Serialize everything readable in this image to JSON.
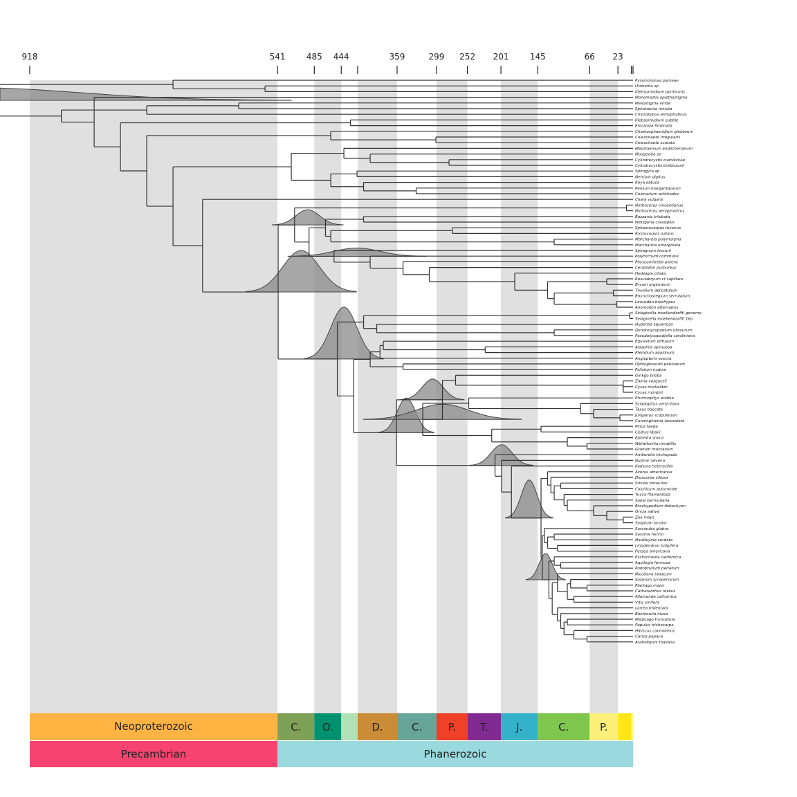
{
  "chart_data": {
    "type": "tree",
    "x_axis": {
      "unit": "Ma",
      "range": [
        918,
        0
      ],
      "ticks": [
        918,
        541,
        485,
        444,
        419,
        359,
        299,
        252,
        201,
        145,
        66,
        23,
        2.6,
        0
      ],
      "tick_labels": [
        "918",
        "541",
        "485",
        "444",
        "",
        "359",
        "299",
        "252",
        "201",
        "145",
        "66",
        "23",
        "",
        ""
      ]
    },
    "shaded_bands": [
      [
        918,
        541
      ],
      [
        485,
        444
      ],
      [
        419,
        359
      ],
      [
        299,
        252
      ],
      [
        201,
        145
      ],
      [
        66,
        23
      ]
    ],
    "periods": [
      {
        "label": "C.",
        "start": 541,
        "end": 485,
        "color": "#7FA057"
      },
      {
        "label": "O.",
        "start": 485,
        "end": 444,
        "color": "#009270"
      },
      {
        "label": "",
        "start": 444,
        "end": 419,
        "color": "#B3E1B6"
      },
      {
        "label": "D.",
        "start": 419,
        "end": 359,
        "color": "#CB8C37"
      },
      {
        "label": "C.",
        "start": 359,
        "end": 299,
        "color": "#67A599"
      },
      {
        "label": "P.",
        "start": 299,
        "end": 252,
        "color": "#F04028"
      },
      {
        "label": "T.",
        "start": 252,
        "end": 201,
        "color": "#812B92"
      },
      {
        "label": "J.",
        "start": 201,
        "end": 145,
        "color": "#34B2C9"
      },
      {
        "label": "C.",
        "start": 145,
        "end": 66,
        "color": "#7FC64E"
      },
      {
        "label": "P.",
        "start": 66,
        "end": 23,
        "color": "#FDF07A"
      },
      {
        "label": "",
        "start": 23,
        "end": 2.6,
        "color": "#FFE619"
      },
      {
        "label": "",
        "start": 2.6,
        "end": 0,
        "color": "#F9F97F"
      }
    ],
    "eras": [
      {
        "label": "Neoproterozoic",
        "start": 918,
        "end": 541,
        "color": "#FEB342"
      }
    ],
    "eons": [
      {
        "label": "Precambrian",
        "start": 918,
        "end": 541,
        "color": "#F74370"
      },
      {
        "label": "Phanerozoic",
        "start": 541,
        "end": 0,
        "color": "#9AD9DD"
      }
    ],
    "taxa": [
      "Pyramimonas parkeae",
      "Uronema sp",
      "Klebsormidium pyriformis",
      "Monomastix opisthostigma",
      "Mesostigma viride",
      "Spirotaenia minuta",
      "Chlorokybus atmophyticus",
      "Klebsormidium subtile",
      "Entransia fimbriata",
      "Chaetosphaeridium globosum",
      "Coleochaete irregularis",
      "Coleochaete scutata",
      "Mesotaenium endlicherianum",
      "Mougeotia sp",
      "Cylindrocystis cushleckae",
      "Cylindrocystis brebissonii",
      "Spirogyra sp",
      "Netrium digitus",
      "Roya obtusa",
      "Penium margaritaceum",
      "Cosmarium ochthodes",
      "Chara vulgaris",
      "Nothoceros vincentianus",
      "Nothoceros aenigmaticus",
      "Bazzania trilobata",
      "Metzgeria crassipilis",
      "Sphaerocarpos texanus",
      "Ricciocarpos natans",
      "Marchantia polymorpha",
      "Marchantia emarginata",
      "Sphagnum lescurii",
      "Polytrichum commune",
      "Physcomitrella patens",
      "Ceratodon purpureus",
      "Hedwigia ciliata",
      "Rosulabryum cf capillare",
      "Bryum argenteum",
      "Thuidium delicatulum",
      "Rhynchostegium serrulatum",
      "Leucodon brachypus",
      "Anomodon attenuatus",
      "Selaginella moellendorffii genome",
      "Selaginella moellendorffii 1kp",
      "Huperzia squarrosa",
      "Dendrolycopodium obscurum",
      "Pseudolycopodiella caroliniana",
      "Equisetum diffusum",
      "Alsophila spinulosa",
      "Pteridium aquilinum",
      "Angiopteris evecta",
      "Ophioglossum petiolatum",
      "Psilotum nudum",
      "Ginkgo biloba",
      "Zamia vazquezii",
      "Cycas micholitzii",
      "Cycas rumphii",
      "Prumnopitys andina",
      "Sciadopitys verticillata",
      "Taxus baccata",
      "Juniperus scopulorum",
      "Cunninghamia lanceolata",
      "Pinus taeda",
      "Cedrus libani",
      "Ephedra sinica",
      "Welwitschia mirabilis",
      "Gnetum montanum",
      "Amborella trichopoda",
      "Nuphar advena",
      "Kadsura heteroclita",
      "Acorus americanus",
      "Dioscorea villosa",
      "Smilax bona-nox",
      "Colchicum autumnale",
      "Yucca filamentosa",
      "Sabal bermudana",
      "Brachypodium distachyon",
      "Oryza sativa",
      "Zea mays",
      "Sorghum bicolor",
      "Sarcandra glabra",
      "Saruma henryi",
      "Houttuynia cordata",
      "Liriodendron tulipifera",
      "Persea americana",
      "Eschscholzia californica",
      "Aquilegia formosa",
      "Podophyllum peltatum",
      "Nicotiana tabacum",
      "Solanum lycopersicum",
      "Plantago major",
      "Catharanthus roseus",
      "Allamanda cathartica",
      "Vitis vinifera",
      "Larrea tridentata",
      "Boehmeria nivea",
      "Medicago truncatula",
      "Populus trichocarpa",
      "Hibiscus cannabinus",
      "Carica papaya",
      "Arabidopsis thaliana"
    ]
  }
}
